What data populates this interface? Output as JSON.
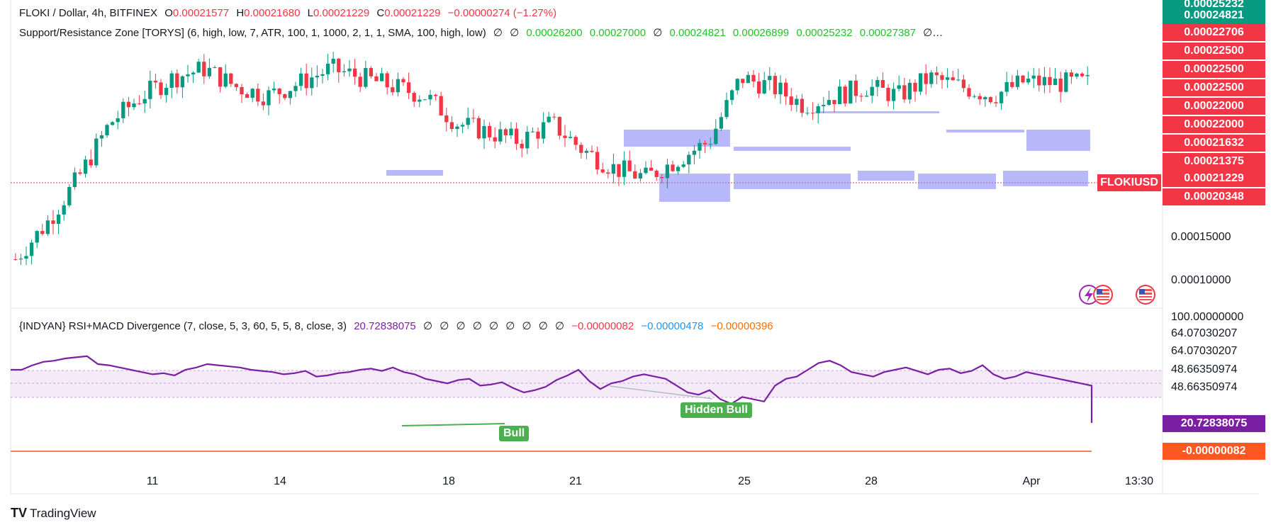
{
  "header": {
    "symbol": "FLOKI / Dollar, 4h, BITFINEX",
    "o_label": "O",
    "o_value": "0.00021577",
    "h_label": "H",
    "h_value": "0.00021680",
    "l_label": "L",
    "l_value": "0.00021229",
    "c_label": "C",
    "c_value": "0.00021229",
    "change": "−0.00000274 (−1.27%)"
  },
  "indicator1": {
    "name": "Support/Resistance Zone [TORYS] (6, high, low, 7, ATR, 100, 1, 1000, 2, 1, 1, SMA, 100, high, low)",
    "values": [
      "∅",
      "∅",
      "0.00026200",
      "0.00027000",
      "∅",
      "0.00024821",
      "0.00026899",
      "0.00025232",
      "0.00027387",
      "∅…"
    ]
  },
  "indicator2": {
    "name": "{INDYAN} RSI+MACD Divergence (7, close, 5, 3, 60, 5, 5, 8, close, 3)",
    "rsi_value": "20.72838075",
    "empty_values": [
      "∅",
      "∅",
      "∅",
      "∅",
      "∅",
      "∅",
      "∅",
      "∅",
      "∅"
    ],
    "macd_values": [
      "−0.00000082",
      "−0.00000478",
      "−0.00000396"
    ]
  },
  "price_axis": {
    "badges": [
      {
        "text": "0.00025232",
        "color": "#089981"
      },
      {
        "text": "0.00024821",
        "color": "#089981"
      },
      {
        "text": "0.00022706",
        "color": "#f23645"
      },
      {
        "text": "0.00022500",
        "color": "#f23645"
      },
      {
        "text": "0.00022500",
        "color": "#f23645"
      },
      {
        "text": "0.00022500",
        "color": "#f23645"
      },
      {
        "text": "0.00022000",
        "color": "#f23645"
      },
      {
        "text": "0.00022000",
        "color": "#f23645"
      },
      {
        "text": "0.00021632",
        "color": "#f23645"
      },
      {
        "text": "0.00021375",
        "color": "#f23645"
      },
      {
        "text": "0.00021229",
        "color": "#f23645"
      },
      {
        "text": "0.00020348",
        "color": "#f23645"
      }
    ],
    "ticks": [
      "0.00015000",
      "0.00010000"
    ],
    "symbol_tag": "FLOKIUSD"
  },
  "rsi_axis": {
    "labels": [
      "100.00000000",
      "64.07030207",
      "64.07030207",
      "48.66350974",
      "48.66350974"
    ],
    "rsi_badge": "20.72838075",
    "macd_badge": "-0.00000082"
  },
  "time_axis": [
    "11",
    "14",
    "18",
    "21",
    "25",
    "28",
    "Apr",
    "13:30"
  ],
  "divergence_labels": {
    "bull": "Bull",
    "hidden_bull": "Hidden Bull"
  },
  "branding": "TradingView",
  "colors": {
    "up": "#089981",
    "down": "#f23645",
    "rsi": "#7b1fa2",
    "zone": "#7b7ff5",
    "bull": "#4caf50",
    "macd": "#ff5722"
  },
  "chart_data": {
    "type": "candlestick",
    "symbol": "FLOKI / Dollar",
    "interval": "4h",
    "x": [
      "11",
      "14",
      "18",
      "21",
      "25",
      "28",
      "Apr"
    ],
    "close_path": [
      0.000115,
      0.000135,
      0.00016,
      0.00019,
      0.000205,
      0.000215,
      0.00022,
      0.00021,
      0.000205,
      0.000212,
      0.00022,
      0.000215,
      0.00021,
      0.000205,
      0.00019,
      0.000185,
      0.00018,
      0.00019,
      0.000175,
      0.000165,
      0.00016,
      0.00017,
      0.00018,
      0.000215,
      0.00021,
      0.0002,
      0.000205,
      0.00021,
      0.000205,
      0.000215,
      0.00021,
      0.000205,
      0.000213,
      0.000212,
      0.00021229
    ],
    "price_range": [
      9e-05,
      0.00025
    ],
    "rsi": {
      "last": 20.72838075,
      "upper": 64.07030207,
      "lower": 48.66350974
    }
  }
}
